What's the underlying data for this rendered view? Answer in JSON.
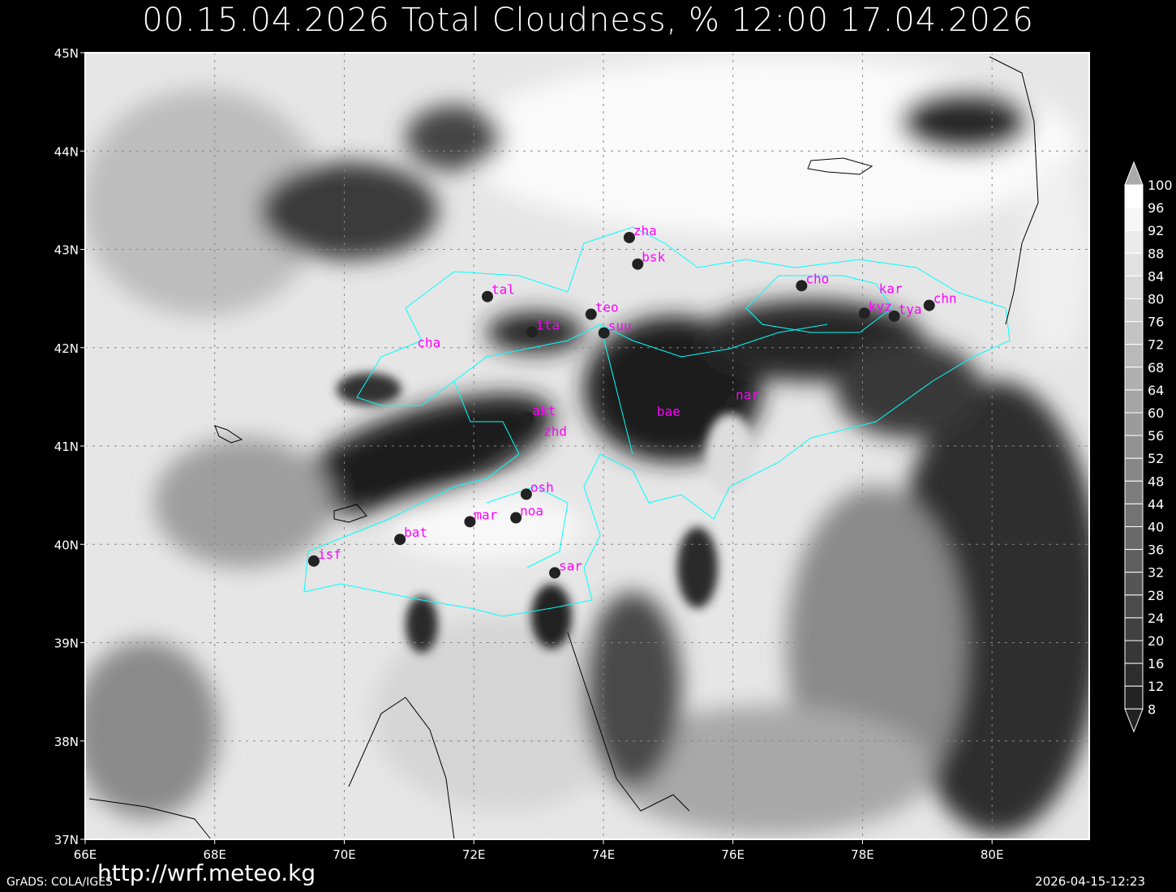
{
  "title": "00.15.04.2026 Total Cloudness, % 12:00 17.04.2026",
  "footer": {
    "url": "http://wrf.meteo.kg",
    "software": "GrADS: COLA/IGES",
    "timestamp": "2026-04-15-12:23"
  },
  "map": {
    "lon_range": [
      66,
      81.5
    ],
    "lat_range": [
      37,
      45
    ],
    "lon_ticks": [
      "66E",
      "68E",
      "70E",
      "72E",
      "74E",
      "76E",
      "78E",
      "80E"
    ],
    "lat_ticks": [
      "37N",
      "38N",
      "39N",
      "40N",
      "41N",
      "42N",
      "43N",
      "44N",
      "45N"
    ],
    "gridlines": true,
    "border_color": "#00ffff",
    "station_label_color": "#ff00ff",
    "stations": [
      {
        "name": "zha",
        "lon": 74.4,
        "lat": 43.12,
        "dot": true
      },
      {
        "name": "bsk",
        "lon": 74.53,
        "lat": 42.85,
        "dot": true
      },
      {
        "name": "tal",
        "lon": 72.21,
        "lat": 42.52,
        "dot": true
      },
      {
        "name": "teo",
        "lon": 73.81,
        "lat": 42.34,
        "dot": true
      },
      {
        "name": "ita",
        "lon": 72.9,
        "lat": 42.16,
        "dot": true
      },
      {
        "name": "suu",
        "lon": 74.01,
        "lat": 42.15,
        "dot": true
      },
      {
        "name": "cha",
        "lon": 71.25,
        "lat": 41.98,
        "dot": false
      },
      {
        "name": "cho",
        "lon": 77.06,
        "lat": 42.63,
        "dot": true
      },
      {
        "name": "kar",
        "lon": 78.38,
        "lat": 42.53,
        "dot": false
      },
      {
        "name": "kyz",
        "lon": 78.03,
        "lat": 42.35,
        "dot": true
      },
      {
        "name": "tya",
        "lon": 78.49,
        "lat": 42.32,
        "dot": true
      },
      {
        "name": "chn",
        "lon": 79.03,
        "lat": 42.43,
        "dot": true
      },
      {
        "name": "akt",
        "lon": 72.84,
        "lat": 41.29,
        "dot": true
      },
      {
        "name": "zhd",
        "lon": 73.2,
        "lat": 41.08,
        "dot": false
      },
      {
        "name": "nar",
        "lon": 75.98,
        "lat": 41.45,
        "dot": true
      },
      {
        "name": "bae",
        "lon": 74.95,
        "lat": 41.28,
        "dot": false
      },
      {
        "name": "osh",
        "lon": 72.81,
        "lat": 40.51,
        "dot": true
      },
      {
        "name": "noa",
        "lon": 72.65,
        "lat": 40.27,
        "dot": true
      },
      {
        "name": "mar",
        "lon": 71.94,
        "lat": 40.23,
        "dot": true
      },
      {
        "name": "bat",
        "lon": 70.86,
        "lat": 40.05,
        "dot": true
      },
      {
        "name": "isf",
        "lon": 69.53,
        "lat": 39.83,
        "dot": true
      },
      {
        "name": "sar",
        "lon": 73.25,
        "lat": 39.71,
        "dot": true
      }
    ]
  },
  "colorbar": {
    "levels": [
      "100",
      "96",
      "92",
      "88",
      "84",
      "80",
      "76",
      "72",
      "68",
      "64",
      "60",
      "56",
      "52",
      "48",
      "44",
      "40",
      "36",
      "32",
      "28",
      "24",
      "20",
      "16",
      "12",
      "8"
    ],
    "colors": [
      "#ffffff",
      "#f6f6f6",
      "#ebebeb",
      "#e1e1e1",
      "#d7d7d7",
      "#cdcdcd",
      "#c3c3c3",
      "#b9b9b9",
      "#afafaf",
      "#a5a5a5",
      "#9b9b9b",
      "#919191",
      "#878787",
      "#7d7d7d",
      "#737373",
      "#696969",
      "#5f5f5f",
      "#555555",
      "#4b4b4b",
      "#414141",
      "#373737",
      "#2d2d2d",
      "#232323"
    ]
  }
}
